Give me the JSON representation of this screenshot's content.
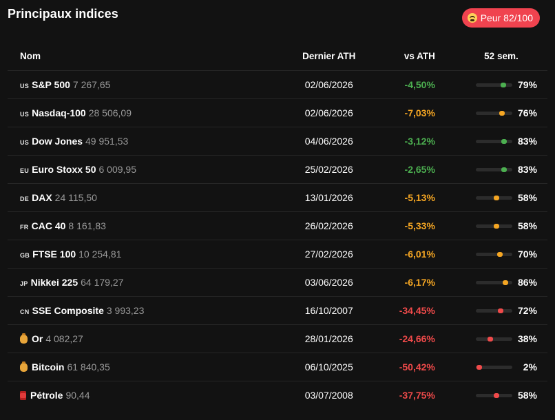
{
  "title": "Principaux indices",
  "sentiment_badge": {
    "label": "Peur 82/100",
    "icon": "fearful-face-icon",
    "color": "#f0434f"
  },
  "columns": {
    "name": "Nom",
    "ath": "Dernier ATH",
    "vs": "vs ATH",
    "week52": "52 sem."
  },
  "colors": {
    "green": "#4caf50",
    "orange": "#f5a623",
    "red": "#f04a4a"
  },
  "rows": [
    {
      "flag": "US",
      "icon": "",
      "name": "S&P 500",
      "value": "7 267,65",
      "ath": "02/06/2026",
      "vs": "-4,50%",
      "tone": "green",
      "week52": "79%",
      "pos": 0.79
    },
    {
      "flag": "US",
      "icon": "",
      "name": "Nasdaq-100",
      "value": "28 506,09",
      "ath": "02/06/2026",
      "vs": "-7,03%",
      "tone": "orange",
      "week52": "76%",
      "pos": 0.76
    },
    {
      "flag": "US",
      "icon": "",
      "name": "Dow Jones",
      "value": "49 951,53",
      "ath": "04/06/2026",
      "vs": "-3,12%",
      "tone": "green",
      "week52": "83%",
      "pos": 0.83
    },
    {
      "flag": "EU",
      "icon": "",
      "name": "Euro Stoxx 50",
      "value": "6 009,95",
      "ath": "25/02/2026",
      "vs": "-2,65%",
      "tone": "green",
      "week52": "83%",
      "pos": 0.83
    },
    {
      "flag": "DE",
      "icon": "",
      "name": "DAX",
      "value": "24 115,50",
      "ath": "13/01/2026",
      "vs": "-5,13%",
      "tone": "orange",
      "week52": "58%",
      "pos": 0.58
    },
    {
      "flag": "FR",
      "icon": "",
      "name": "CAC 40",
      "value": "8 161,83",
      "ath": "26/02/2026",
      "vs": "-5,33%",
      "tone": "orange",
      "week52": "58%",
      "pos": 0.58
    },
    {
      "flag": "GB",
      "icon": "",
      "name": "FTSE 100",
      "value": "10 254,81",
      "ath": "27/02/2026",
      "vs": "-6,01%",
      "tone": "orange",
      "week52": "70%",
      "pos": 0.7
    },
    {
      "flag": "JP",
      "icon": "",
      "name": "Nikkei 225",
      "value": "64 179,27",
      "ath": "03/06/2026",
      "vs": "-6,17%",
      "tone": "orange",
      "week52": "86%",
      "pos": 0.86
    },
    {
      "flag": "CN",
      "icon": "",
      "name": "SSE Composite",
      "value": "3 993,23",
      "ath": "16/10/2007",
      "vs": "-34,45%",
      "tone": "red",
      "week52": "72%",
      "pos": 0.72
    },
    {
      "flag": "",
      "icon": "money-bag-icon",
      "name": "Or",
      "value": "4 082,27",
      "ath": "28/01/2026",
      "vs": "-24,66%",
      "tone": "red",
      "week52": "38%",
      "pos": 0.38
    },
    {
      "flag": "",
      "icon": "money-bag-icon",
      "name": "Bitcoin",
      "value": "61 840,35",
      "ath": "06/10/2025",
      "vs": "-50,42%",
      "tone": "red",
      "week52": "2%",
      "pos": 0.02
    },
    {
      "flag": "",
      "icon": "oil-barrel-icon",
      "name": "Pétrole",
      "value": "90,44",
      "ath": "03/07/2008",
      "vs": "-37,75%",
      "tone": "red",
      "week52": "58%",
      "pos": 0.58
    }
  ]
}
